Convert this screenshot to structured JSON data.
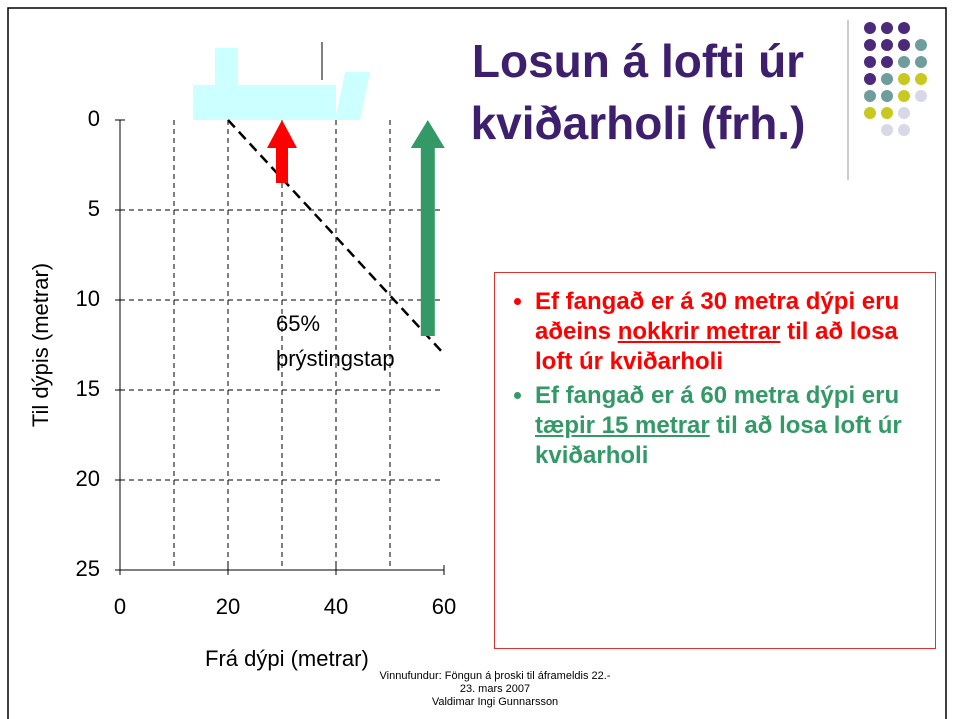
{
  "chart_data": {
    "type": "line",
    "xlabel": "Frá dýpi (metrar)",
    "ylabel": "Til dýpis (metrar)",
    "xlim": [
      0,
      60
    ],
    "xticks": [
      0,
      20,
      40,
      60
    ],
    "xgrid": [
      10,
      20,
      30,
      40,
      50
    ],
    "ylim": [
      25,
      0
    ],
    "yticks": [
      0,
      5,
      10,
      15,
      20,
      25
    ],
    "ygrid": [
      5,
      10,
      15,
      20
    ],
    "grid": true,
    "x": [
      20,
      60
    ],
    "series": [
      {
        "color": "#000000",
        "values": [
          0,
          13
        ]
      }
    ],
    "arrows": [
      {
        "x": 30,
        "from": 3.5,
        "to": 0,
        "color": "#ff0000"
      },
      {
        "x": 57,
        "from": 12,
        "to": 0,
        "color": "#339966"
      }
    ],
    "annotation": [
      "65%",
      "þrýstingstap"
    ]
  },
  "slide": {
    "title": "Losun á lofti úr kviðarholi (frh.)",
    "bullets": [
      {
        "color": "#ff0000",
        "segments": [
          {
            "text": "Ef fangað er á 30 metra dýpi eru aðeins "
          },
          {
            "text": "nokkrir metrar",
            "underline": true
          },
          {
            "text": " til að losa loft úr kviðarholi"
          }
        ]
      },
      {
        "color": "#339966",
        "segments": [
          {
            "text": "Ef fangað er á 60 metra dýpi eru "
          },
          {
            "text": "tæpir 15 metrar",
            "underline": true
          },
          {
            "text": " til að losa loft úr kviðarholi"
          }
        ]
      }
    ],
    "footer": [
      "Vinnufundur: Föngun á þroski til áframeldis 22.-",
      "23. mars 2007",
      "Valdimar Ingi Gunnarsson"
    ]
  }
}
